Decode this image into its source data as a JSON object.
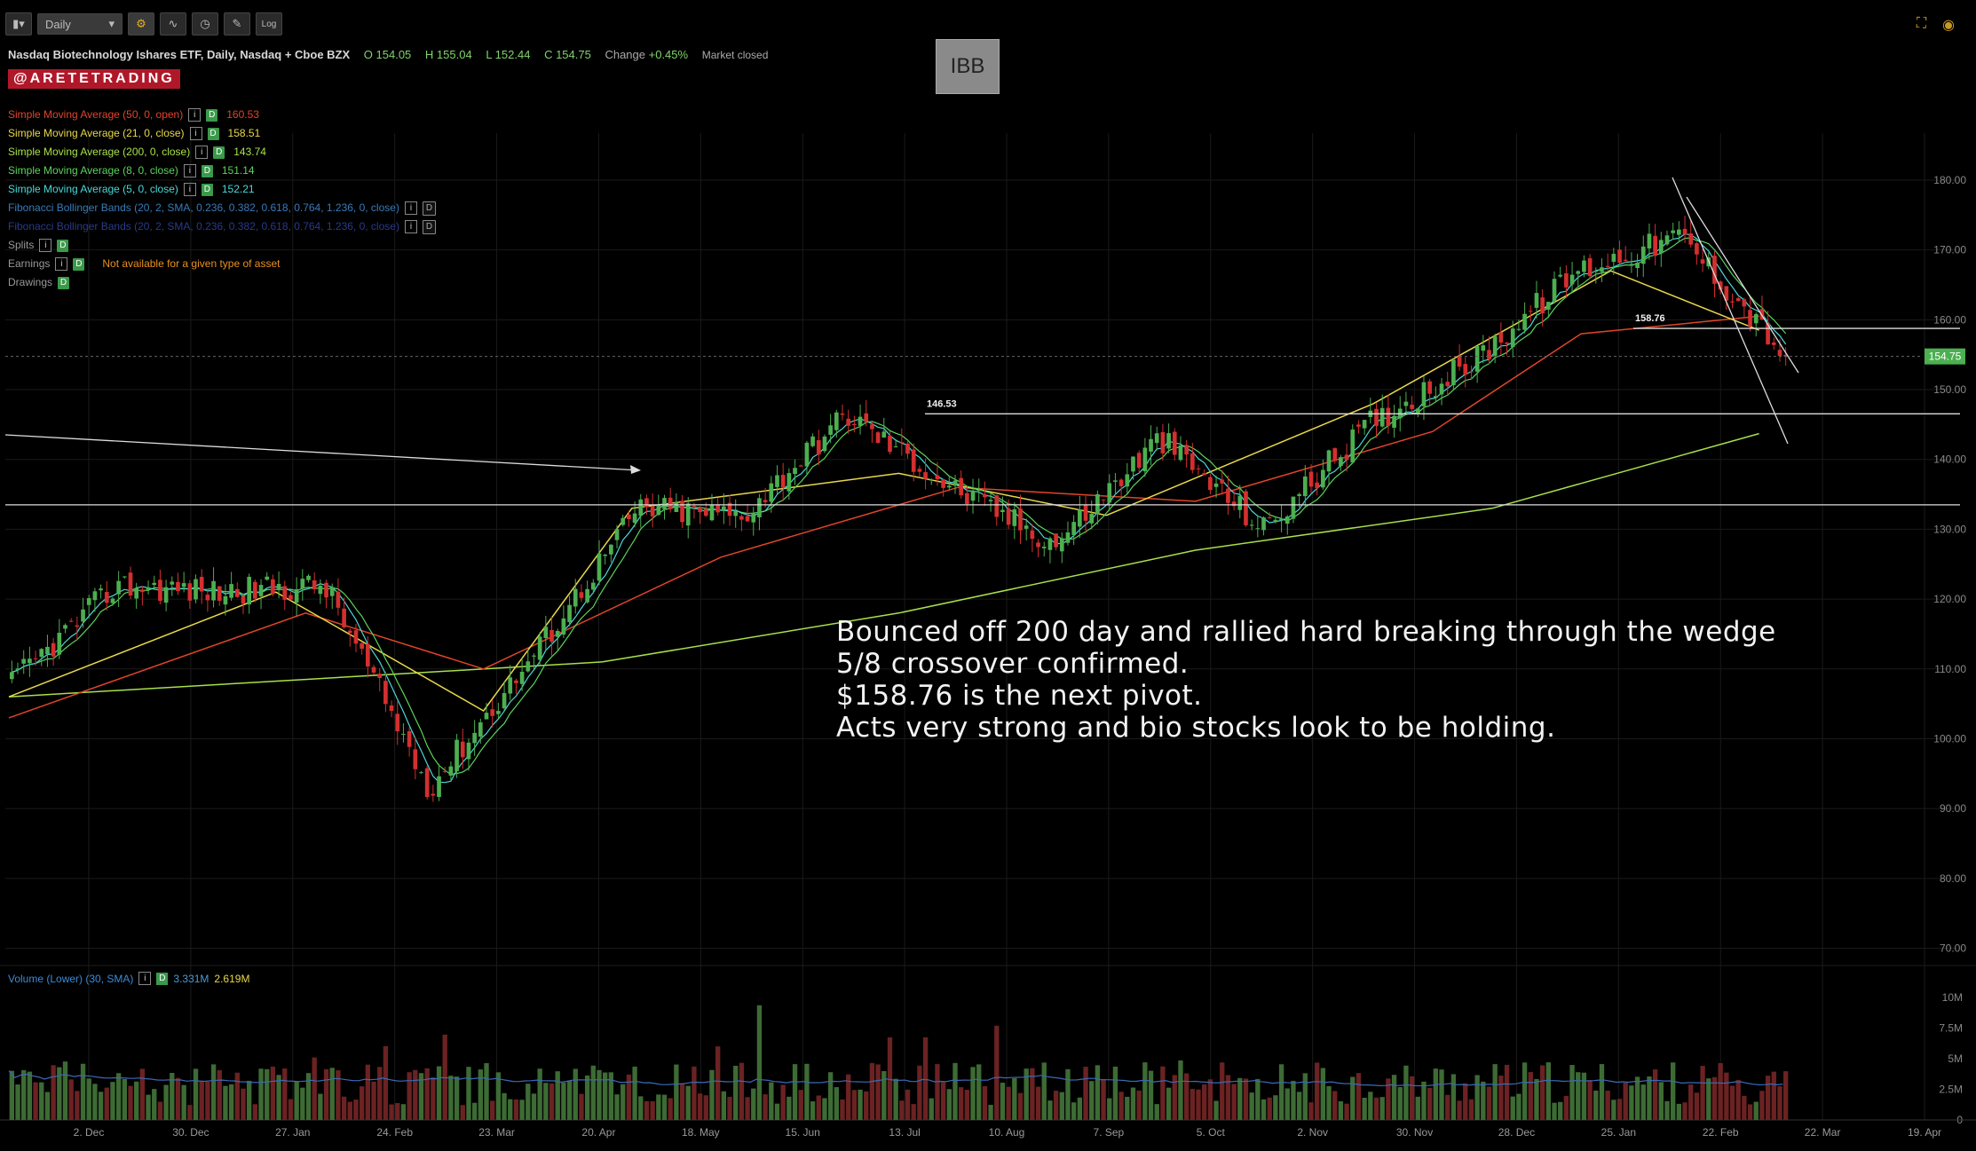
{
  "toolbar": {
    "interval": "Daily",
    "log_label": "Log"
  },
  "header": {
    "name": "Nasdaq Biotechnology Ishares ETF, Daily, Nasdaq + Cboe BZX",
    "open": "O 154.05",
    "high": "H 155.04",
    "low": "L 152.44",
    "close": "C 154.75",
    "change_label": "Change",
    "change_value": "+0.45%",
    "status": "Market closed"
  },
  "brand": "@ARETETRADING",
  "ticker": "IBB",
  "legend": [
    {
      "label": "Simple Moving Average (50, 0, open)",
      "value": "160.53",
      "color": "#e0452a"
    },
    {
      "label": "Simple Moving Average (21, 0, close)",
      "value": "158.51",
      "color": "#e8d84a"
    },
    {
      "label": "Simple Moving Average (200, 0, close)",
      "value": "143.74",
      "color": "#a8e04a"
    },
    {
      "label": "Simple Moving Average (8, 0, close)",
      "value": "151.14",
      "color": "#5ad45a"
    },
    {
      "label": "Simple Moving Average (5, 0, close)",
      "value": "152.21",
      "color": "#4ad8d8"
    },
    {
      "label": "Fibonacci Bollinger Bands (20, 2, SMA, 0.236, 0.382, 0.618, 0.764, 1.236, 0, close)",
      "value": "",
      "color": "#3a7ab8"
    },
    {
      "label": "Fibonacci Bollinger Bands (20, 2, SMA, 0.236, 0.382, 0.618, 0.764, 1.236, 0, close)",
      "value": "",
      "color": "#2a3a8a"
    },
    {
      "label": "Splits",
      "value": "",
      "color": "#999999"
    },
    {
      "label": "Earnings",
      "value": "Not available for a given type of asset",
      "color": "#999999"
    },
    {
      "label": "Drawings",
      "value": "",
      "color": "#999999"
    }
  ],
  "annotation": [
    "Bounced off 200 day and rallied hard breaking through the wedge",
    "5/8 crossover confirmed.",
    "$158.76 is the next pivot.",
    "Acts very strong and bio stocks look to be holding."
  ],
  "volume_legend": {
    "label": "Volume (Lower) (30, SMA)",
    "value1": "3.331M",
    "value2": "2.619M"
  },
  "chart_data": {
    "type": "candlestick",
    "price_axis": {
      "ticks": [
        70,
        80,
        90,
        100,
        110,
        120,
        130,
        140,
        150,
        160,
        170,
        180
      ],
      "labels": [
        "70.00",
        "80.00",
        "90.00",
        "100.00",
        "110.00",
        "120.00",
        "130.00",
        "140.00",
        "150.00",
        "160.00",
        "170.00",
        "180.00"
      ],
      "range": [
        66,
        188
      ]
    },
    "volume_axis": {
      "ticks": [
        0,
        2.5,
        5,
        7.5,
        10
      ],
      "labels": [
        "0",
        "2.5M",
        "5M",
        "7.5M",
        "10M"
      ],
      "range": [
        0,
        11
      ]
    },
    "date_ticks": [
      "2. Dec",
      "30. Dec",
      "27. Jan",
      "24. Feb",
      "23. Mar",
      "20. Apr",
      "18. May",
      "15. Jun",
      "13. Jul",
      "10. Aug",
      "7. Sep",
      "5. Oct",
      "2. Nov",
      "30. Nov",
      "28. Dec",
      "25. Jan",
      "22. Feb",
      "22. Mar",
      "19. Apr"
    ],
    "last_price": {
      "value": 154.75,
      "label": "154.75",
      "color": "#4caf50"
    },
    "levels": [
      {
        "price": 158.76,
        "label": "158.76"
      },
      {
        "price": 146.53,
        "label": "146.53"
      },
      {
        "price": 133.5,
        "label": ""
      }
    ],
    "key_points": [
      {
        "date": "2. Dec",
        "close": 108
      },
      {
        "date": "30. Dec",
        "close": 122
      },
      {
        "date": "27. Jan",
        "close": 121
      },
      {
        "date": "24. Feb",
        "close": 122
      },
      {
        "date": "23. Mar",
        "close": 93
      },
      {
        "date": "20. Apr",
        "close": 112
      },
      {
        "date": "18. May",
        "close": 133
      },
      {
        "date": "15. Jun",
        "close": 132
      },
      {
        "date": "13. Jul",
        "close": 146.5
      },
      {
        "date": "10. Aug",
        "close": 136
      },
      {
        "date": "7. Sep",
        "close": 128
      },
      {
        "date": "5. Oct",
        "close": 143
      },
      {
        "date": "2. Nov",
        "close": 130
      },
      {
        "date": "30. Nov",
        "close": 145
      },
      {
        "date": "28. Dec",
        "close": 154
      },
      {
        "date": "25. Jan",
        "close": 167
      },
      {
        "date": "22. Feb",
        "close": 172
      },
      {
        "date": "22. Mar",
        "close": 154.75
      }
    ],
    "sma": {
      "sma200": [
        [
          0,
          106
        ],
        [
          50,
          108.5
        ],
        [
          100,
          111
        ],
        [
          150,
          118
        ],
        [
          200,
          127
        ],
        [
          250,
          133
        ],
        [
          295,
          143.7
        ]
      ],
      "sma50": [
        [
          0,
          103
        ],
        [
          50,
          118
        ],
        [
          80,
          110
        ],
        [
          120,
          126
        ],
        [
          160,
          136
        ],
        [
          200,
          134
        ],
        [
          240,
          144
        ],
        [
          265,
          158
        ],
        [
          295,
          160.5
        ]
      ],
      "sma21": [
        [
          0,
          106
        ],
        [
          45,
          121
        ],
        [
          80,
          104
        ],
        [
          105,
          133
        ],
        [
          150,
          138
        ],
        [
          185,
          132
        ],
        [
          230,
          148
        ],
        [
          270,
          167
        ],
        [
          295,
          158.5
        ]
      ]
    },
    "colors": {
      "up": "#4caf50",
      "down": "#d32f2f",
      "sma200": "#a8e04a",
      "sma50": "#e0452a",
      "sma21": "#e8d84a",
      "sma8": "#5ad45a",
      "sma5": "#4ad8d8",
      "volume_sma": "#3a6ab8"
    }
  }
}
